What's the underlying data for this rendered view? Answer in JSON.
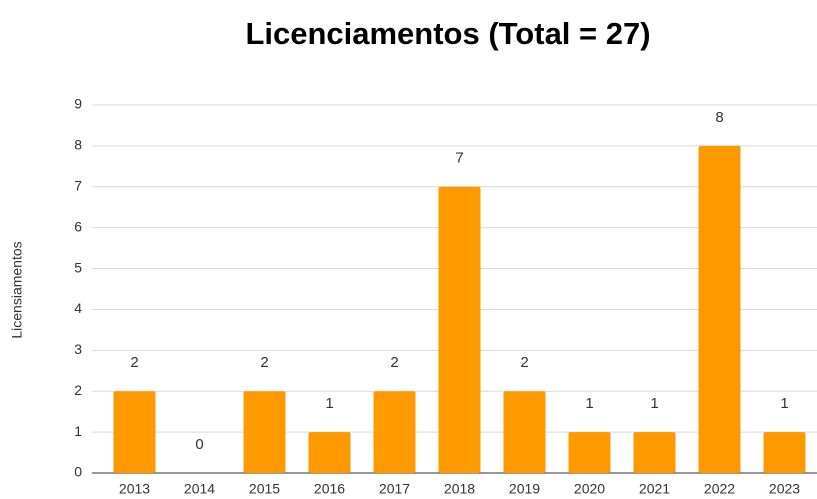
{
  "chart_data": {
    "type": "bar",
    "title": "Licenciamentos (Total = 27)",
    "y_label": "Licensiamentos",
    "categories": [
      "2013",
      "2014",
      "2015",
      "2016",
      "2017",
      "2018",
      "2019",
      "2020",
      "2021",
      "2022",
      "2023"
    ],
    "values": [
      2,
      0,
      2,
      1,
      2,
      7,
      2,
      1,
      1,
      8,
      1
    ],
    "color": "#ff9900",
    "ylim": [
      0,
      9
    ],
    "yticks": [
      0,
      1,
      2,
      3,
      4,
      5,
      6,
      7,
      8,
      9
    ],
    "grid": true,
    "data_labels": true
  }
}
